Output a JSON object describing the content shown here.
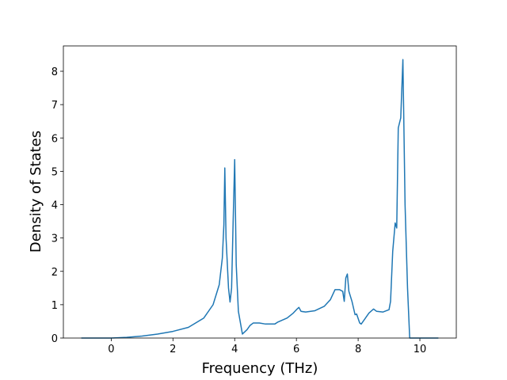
{
  "chart_data": {
    "type": "line",
    "x_label": "Frequency (THz)",
    "y_label": "Density of States",
    "x": [
      -0.97,
      0,
      0.5,
      1,
      1.5,
      2,
      2.5,
      3,
      3.3,
      3.5,
      3.6,
      3.65,
      3.68,
      3.72,
      3.8,
      3.85,
      3.9,
      3.95,
      4.0,
      4.05,
      4.12,
      4.25,
      4.4,
      4.5,
      4.6,
      4.8,
      5.0,
      5.3,
      5.4,
      5.7,
      5.9,
      6.0,
      6.08,
      6.15,
      6.3,
      6.6,
      6.9,
      7.1,
      7.25,
      7.4,
      7.5,
      7.55,
      7.6,
      7.65,
      7.7,
      7.8,
      7.9,
      7.95,
      8.05,
      8.1,
      8.2,
      8.35,
      8.5,
      8.6,
      8.8,
      9.0,
      9.05,
      9.12,
      9.2,
      9.25,
      9.3,
      9.38,
      9.45,
      9.52,
      9.6,
      9.67,
      10.6
    ],
    "series": [
      {
        "color": "#1f77b4",
        "values": [
          0,
          0,
          0.02,
          0.06,
          0.12,
          0.2,
          0.32,
          0.6,
          1.0,
          1.6,
          2.4,
          3.4,
          5.1,
          3.0,
          1.5,
          1.08,
          1.5,
          3.5,
          5.35,
          2.2,
          0.8,
          0.12,
          0.25,
          0.38,
          0.45,
          0.45,
          0.42,
          0.42,
          0.48,
          0.6,
          0.75,
          0.85,
          0.92,
          0.8,
          0.78,
          0.82,
          0.95,
          1.15,
          1.45,
          1.45,
          1.4,
          1.1,
          1.8,
          1.92,
          1.4,
          1.1,
          0.7,
          0.72,
          0.45,
          0.42,
          0.55,
          0.75,
          0.87,
          0.8,
          0.78,
          0.85,
          1.1,
          2.6,
          3.45,
          3.3,
          6.3,
          6.6,
          8.35,
          4.0,
          1.5,
          0,
          0
        ]
      }
    ],
    "xlim": [
      -1.55,
      11.18
    ],
    "ylim": [
      0,
      8.76
    ],
    "xticks": [
      0,
      2,
      4,
      6,
      8,
      10
    ],
    "yticks": [
      0,
      1,
      2,
      3,
      4,
      5,
      6,
      7,
      8
    ]
  }
}
